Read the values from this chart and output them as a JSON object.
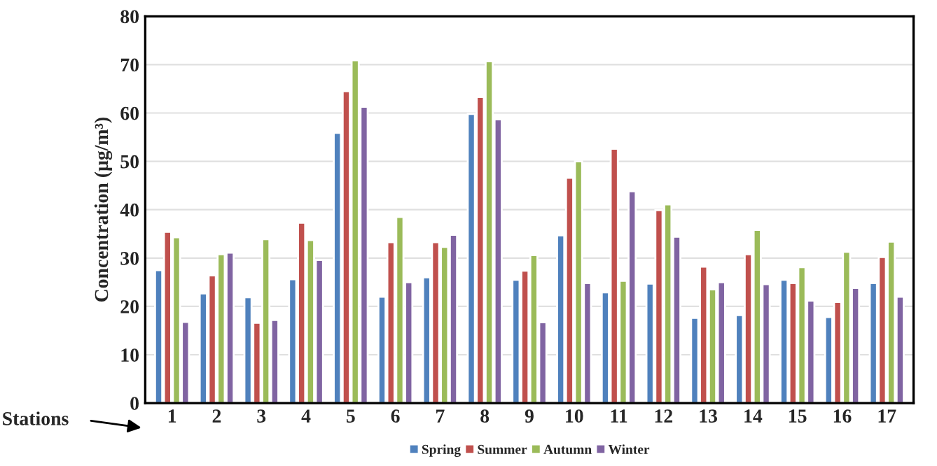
{
  "chart_data": {
    "type": "bar",
    "xlabel": "Stations",
    "ylabel": "Concentration (μg/m³)",
    "categories": [
      "1",
      "2",
      "3",
      "4",
      "5",
      "6",
      "7",
      "8",
      "9",
      "10",
      "11",
      "12",
      "13",
      "14",
      "15",
      "16",
      "17"
    ],
    "series": [
      {
        "name": "Spring",
        "color": "#4f81bd",
        "values": [
          27.5,
          22.7,
          21.9,
          25.6,
          55.9,
          22,
          26,
          59.8,
          25.5,
          34.7,
          22.9,
          24.7,
          17.6,
          18.2,
          25.5,
          17.8,
          24.8
        ]
      },
      {
        "name": "Summer",
        "color": "#c0504d",
        "values": [
          35.4,
          26.4,
          16.6,
          37.3,
          64.5,
          33.3,
          33.3,
          63.3,
          27.4,
          46.6,
          52.6,
          39.9,
          28.2,
          30.8,
          24.8,
          20.9,
          30.2
        ]
      },
      {
        "name": "Autumn",
        "color": "#9bbb59",
        "values": [
          34.3,
          30.8,
          33.9,
          33.7,
          70.9,
          38.5,
          32.3,
          70.7,
          30.6,
          50,
          25.3,
          41.1,
          23.5,
          35.8,
          28.1,
          31.3,
          33.4
        ]
      },
      {
        "name": "Winter",
        "color": "#8064a2",
        "values": [
          16.8,
          31.1,
          17.2,
          29.6,
          61.3,
          25,
          34.8,
          58.7,
          16.7,
          24.8,
          43.8,
          34.4,
          25,
          24.6,
          21.2,
          23.8,
          22
        ]
      }
    ],
    "ylim": [
      0,
      80
    ],
    "yticks": [
      0,
      10,
      20,
      30,
      40,
      50,
      60,
      70,
      80
    ],
    "grid": "y",
    "legend": "bottom"
  }
}
